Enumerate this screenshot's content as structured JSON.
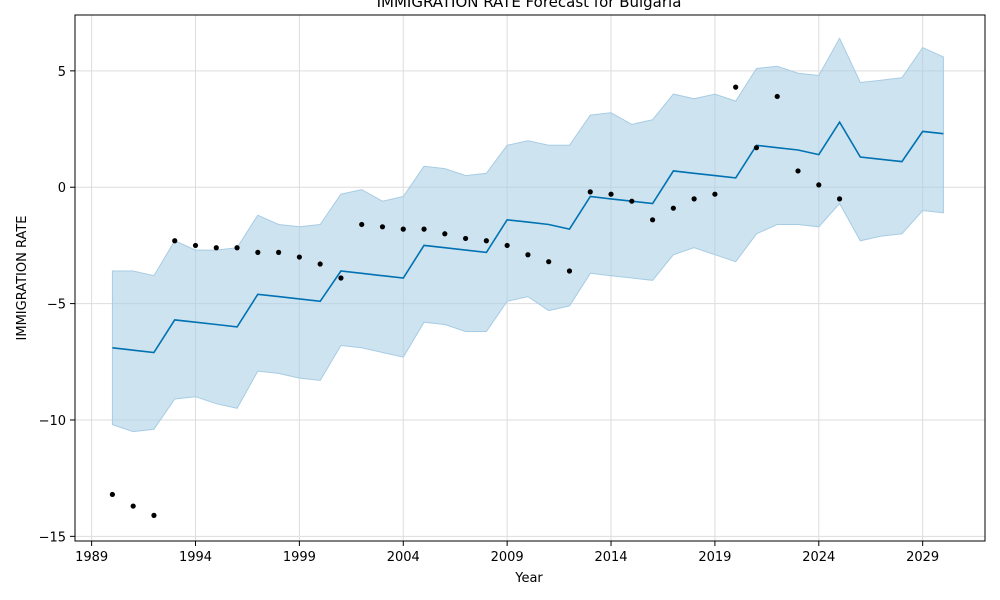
{
  "chart_data": {
    "type": "line",
    "title": "IMMIGRATION RATE Forecast for Bulgaria",
    "xlabel": "Year",
    "ylabel": "IMMIGRATION RATE",
    "xlim": [
      1988.2,
      2032.0
    ],
    "ylim": [
      -15.2,
      7.4
    ],
    "xticks": [
      1989,
      1994,
      1999,
      2004,
      2009,
      2014,
      2019,
      2024,
      2029
    ],
    "yticks": [
      -15,
      -10,
      -5,
      0,
      5
    ],
    "grid": true,
    "colors": {
      "forecast": "#0072b2",
      "band": "#a6cce4",
      "observed": "#000000",
      "grid": "#dddddd"
    },
    "observed": {
      "x": [
        1990,
        1991,
        1992,
        1993,
        1994,
        1995,
        1996,
        1997,
        1998,
        1999,
        2000,
        2001,
        2002,
        2003,
        2004,
        2005,
        2006,
        2007,
        2008,
        2009,
        2010,
        2011,
        2012,
        2013,
        2014,
        2015,
        2016,
        2017,
        2018,
        2019,
        2020,
        2021,
        2022,
        2023,
        2024,
        2025
      ],
      "y": [
        -13.2,
        -13.7,
        -14.1,
        -2.3,
        -2.5,
        -2.6,
        -2.6,
        -2.8,
        -2.8,
        -3.0,
        -3.3,
        -3.9,
        -1.6,
        -1.7,
        -1.8,
        -1.8,
        -2.0,
        -2.2,
        -2.3,
        -2.5,
        -2.9,
        -3.2,
        -3.6,
        -0.2,
        -0.3,
        -0.6,
        -1.4,
        -0.9,
        -0.5,
        -0.3,
        4.3,
        1.7,
        3.9,
        0.7,
        0.1,
        -0.5
      ]
    },
    "forecast": {
      "x": [
        1990,
        1991,
        1992,
        1993,
        1994,
        1995,
        1996,
        1997,
        1998,
        1999,
        2000,
        2001,
        2002,
        2003,
        2004,
        2005,
        2006,
        2007,
        2008,
        2009,
        2010,
        2011,
        2012,
        2013,
        2014,
        2015,
        2016,
        2017,
        2018,
        2019,
        2020,
        2021,
        2022,
        2023,
        2024,
        2025,
        2026,
        2027,
        2028,
        2029,
        2030
      ],
      "yhat": [
        -6.9,
        -7.0,
        -7.1,
        -5.7,
        -5.8,
        -5.9,
        -6.0,
        -4.6,
        -4.7,
        -4.8,
        -4.9,
        -3.6,
        -3.7,
        -3.8,
        -3.9,
        -2.5,
        -2.6,
        -2.7,
        -2.8,
        -1.4,
        -1.5,
        -1.6,
        -1.8,
        -0.4,
        -0.5,
        -0.6,
        -0.7,
        0.7,
        0.6,
        0.5,
        0.4,
        1.8,
        1.7,
        1.6,
        1.4,
        2.8,
        1.3,
        1.2,
        1.1,
        2.4,
        2.3
      ],
      "upper": [
        -3.6,
        -3.6,
        -3.8,
        -2.3,
        -2.7,
        -2.7,
        -2.6,
        -1.2,
        -1.6,
        -1.7,
        -1.6,
        -0.3,
        -0.1,
        -0.6,
        -0.4,
        0.9,
        0.8,
        0.5,
        0.6,
        1.8,
        2.0,
        1.8,
        1.8,
        3.1,
        3.2,
        2.7,
        2.9,
        4.0,
        3.8,
        4.0,
        3.7,
        5.1,
        5.2,
        4.9,
        4.8,
        6.4,
        4.5,
        4.6,
        4.7,
        6.0,
        5.6
      ],
      "lower": [
        -10.2,
        -10.5,
        -10.4,
        -9.1,
        -9.0,
        -9.3,
        -9.5,
        -7.9,
        -8.0,
        -8.2,
        -8.3,
        -6.8,
        -6.9,
        -7.1,
        -7.3,
        -5.8,
        -5.9,
        -6.2,
        -6.2,
        -4.9,
        -4.7,
        -5.3,
        -5.1,
        -3.7,
        -3.8,
        -3.9,
        -4.0,
        -2.9,
        -2.6,
        -2.9,
        -3.2,
        -2.0,
        -1.6,
        -1.6,
        -1.7,
        -0.7,
        -2.3,
        -2.1,
        -2.0,
        -1.0,
        -1.1
      ]
    }
  }
}
